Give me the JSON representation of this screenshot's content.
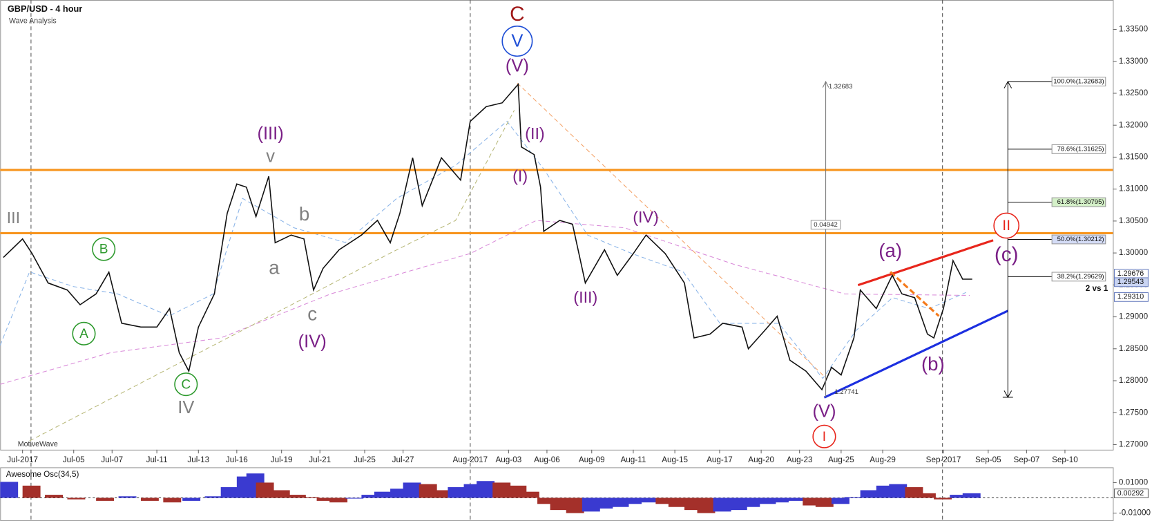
{
  "chart_data": [
    {
      "type": "line",
      "title": "GBP/USD - 4 hour",
      "subtitle": "Wave Analysis",
      "watermark": "MotiveWave",
      "x": [
        1,
        7,
        10,
        15,
        21,
        25,
        30,
        34,
        38,
        44,
        49,
        53,
        56,
        59,
        62,
        67,
        71,
        74,
        77,
        80,
        84,
        86,
        91,
        95,
        98,
        101,
        106,
        113,
        118,
        122,
        125,
        129,
        132,
        138,
        144,
        147,
        152,
        157,
        162,
        163,
        167,
        169,
        170,
        175,
        179,
        183,
        189,
        193,
        198,
        202,
        208,
        214,
        217,
        222,
        226,
        232,
        234,
        239,
        243,
        247,
        252,
        257,
        260,
        263,
        267,
        269,
        274,
        279,
        282,
        286,
        290,
        292,
        295,
        298,
        301,
        304
      ],
      "series": [
        {
          "color": "#111111",
          "values": [
            1.2993,
            1.3022,
            1.2999,
            1.2953,
            1.2942,
            1.2919,
            1.2936,
            1.297,
            1.289,
            1.2884,
            1.2884,
            1.2913,
            1.2844,
            1.2815,
            1.2884,
            1.2936,
            1.3062,
            1.3108,
            1.3103,
            1.3057,
            1.312,
            1.3016,
            1.3028,
            1.3022,
            1.2942,
            1.2976,
            1.3005,
            1.3028,
            1.3051,
            1.3016,
            1.3062,
            1.3149,
            1.3074,
            1.3149,
            1.3114,
            1.3206,
            1.3229,
            1.3235,
            1.3264,
            1.3166,
            1.3154,
            1.3103,
            1.3034,
            1.3051,
            1.3045,
            1.2953,
            1.3005,
            1.2965,
            1.2999,
            1.3028,
            1.2999,
            1.2953,
            1.2867,
            1.2873,
            1.289,
            1.2884,
            1.285,
            1.2878,
            1.2901,
            1.2832,
            1.2815,
            1.2786,
            1.2821,
            1.2809,
            1.2867,
            1.2942,
            1.2913,
            1.2965,
            1.2936,
            1.293,
            1.2873,
            1.2867,
            1.2913,
            1.2988,
            1.2959,
            1.2959
          ]
        }
      ],
      "xlim": [
        0,
        348
      ],
      "xticks": [
        {
          "value": 7,
          "label": "Jul-2017"
        },
        {
          "value": 23,
          "label": "Jul-05"
        },
        {
          "value": 35,
          "label": "Jul-07"
        },
        {
          "value": 49,
          "label": "Jul-11"
        },
        {
          "value": 62,
          "label": "Jul-13"
        },
        {
          "value": 74,
          "label": "Jul-16"
        },
        {
          "value": 88,
          "label": "Jul-19"
        },
        {
          "value": 100,
          "label": "Jul-21"
        },
        {
          "value": 114,
          "label": "Jul-25"
        },
        {
          "value": 126,
          "label": "Jul-27"
        },
        {
          "value": 147,
          "label": "Aug-2017"
        },
        {
          "value": 159,
          "label": "Aug-03"
        },
        {
          "value": 171,
          "label": "Aug-06"
        },
        {
          "value": 185,
          "label": "Aug-09"
        },
        {
          "value": 198,
          "label": "Aug-11"
        },
        {
          "value": 211,
          "label": "Aug-15"
        },
        {
          "value": 225,
          "label": "Aug-17"
        },
        {
          "value": 238,
          "label": "Aug-20"
        },
        {
          "value": 250,
          "label": "Aug-23"
        },
        {
          "value": 263,
          "label": "Aug-25"
        },
        {
          "value": 276,
          "label": "Aug-29"
        },
        {
          "value": 295,
          "label": "Sep-2017"
        },
        {
          "value": 309,
          "label": "Sep-05"
        },
        {
          "value": 321,
          "label": "Sep-07"
        },
        {
          "value": 333,
          "label": "Sep-10"
        }
      ],
      "ylim": [
        1.2692,
        1.3396
      ],
      "yticks": [
        {
          "value": 1.335,
          "label": "1.33500"
        },
        {
          "value": 1.33,
          "label": "1.33000"
        },
        {
          "value": 1.325,
          "label": "1.32500"
        },
        {
          "value": 1.32,
          "label": "1.32000"
        },
        {
          "value": 1.315,
          "label": "1.31500"
        },
        {
          "value": 1.31,
          "label": "1.31000"
        },
        {
          "value": 1.305,
          "label": "1.30500"
        },
        {
          "value": 1.3,
          "label": "1.30000"
        },
        {
          "value": 1.295,
          "label": "1.29500"
        },
        {
          "value": 1.29,
          "label": "1.29000"
        },
        {
          "value": 1.285,
          "label": "1.28500"
        },
        {
          "value": 1.28,
          "label": "1.28000"
        },
        {
          "value": 1.275,
          "label": "1.27500"
        },
        {
          "value": 1.27,
          "label": "1.27000"
        }
      ],
      "hlines": [
        {
          "value": 1.313,
          "color": "#f7941d"
        },
        {
          "value": 1.3031,
          "color": "#f7941d"
        }
      ],
      "fib_levels": [
        {
          "value": 1.32683,
          "label": "100.0%(1.32683)"
        },
        {
          "value": 1.31625,
          "label": "78.6%(1.31625)"
        },
        {
          "value": 1.30795,
          "label": "61.8%(1.30795)"
        },
        {
          "value": 1.30212,
          "label": "50.0%(1.30212)"
        },
        {
          "value": 1.29629,
          "label": "38.2%(1.29629)"
        }
      ],
      "measure": {
        "from": 1.27741,
        "to": 1.32683,
        "diff": 0.04942
      },
      "price_labels": [
        1.29676,
        1.29543,
        {
          "value": 1.2931,
          "label": "1.29310"
        }
      ],
      "annotations": [
        {
          "text": "C",
          "color": "#a01818"
        },
        {
          "text": "V",
          "color": "#1f4fd6",
          "circled": true
        },
        {
          "text": "(V)",
          "color": "#7a1f86"
        },
        {
          "text": "(II)",
          "color": "#7a1f86"
        },
        {
          "text": "(I)",
          "color": "#7a1f86"
        },
        {
          "text": "(III)",
          "color": "#7a1f86"
        },
        {
          "text": "v",
          "color": "#808080"
        },
        {
          "text": "b",
          "color": "#808080"
        },
        {
          "text": "a",
          "color": "#808080"
        },
        {
          "text": "c",
          "color": "#808080"
        },
        {
          "text": "(IV)",
          "color": "#7a1f86"
        },
        {
          "text": "III",
          "color": "#808080"
        },
        {
          "text": "B",
          "color": "#2e9a2e",
          "circled": true
        },
        {
          "text": "A",
          "color": "#2e9a2e",
          "circled": true
        },
        {
          "text": "C",
          "color": "#2e9a2e",
          "circled": true
        },
        {
          "text": "IV",
          "color": "#808080"
        },
        {
          "text": "(IV)",
          "color": "#7a1f86"
        },
        {
          "text": "(III)",
          "color": "#7a1f86"
        },
        {
          "text": "(a)",
          "color": "#7a1f86"
        },
        {
          "text": "(b)",
          "color": "#7a1f86"
        },
        {
          "text": "(V)",
          "color": "#7a1f86"
        },
        {
          "text": "I",
          "color": "#e8261c",
          "circled": true
        },
        {
          "text": "II",
          "color": "#e8261c",
          "circled": true
        },
        {
          "text": "(c)",
          "color": "#7a1f86"
        },
        {
          "text": "2 vs 1",
          "color": "#111111"
        }
      ]
    },
    {
      "type": "bar",
      "title": "Awesome Osc(34,5)",
      "x": [
        0,
        7,
        14,
        21,
        30,
        37,
        44,
        51,
        57,
        64,
        69,
        74,
        77,
        80,
        85,
        90,
        94,
        99,
        103,
        108,
        113,
        117,
        122,
        126,
        131,
        136,
        140,
        145,
        149,
        154,
        159,
        163,
        168,
        172,
        177,
        182,
        186,
        191,
        195,
        200,
        205,
        209,
        214,
        218,
        223,
        228,
        232,
        237,
        241,
        246,
        251,
        255,
        260,
        264,
        269,
        274,
        278,
        283,
        287,
        292,
        297,
        301
      ],
      "values": [
        0.0105,
        0.008,
        0.002,
        -0.001,
        -0.002,
        0.001,
        -0.002,
        -0.003,
        -0.002,
        0.001,
        0.007,
        0.014,
        0.016,
        0.01,
        0.005,
        0.002,
        0.0005,
        -0.002,
        -0.003,
        -0.0005,
        0.002,
        0.004,
        0.006,
        0.01,
        0.009,
        0.005,
        0.007,
        0.009,
        0.011,
        0.01,
        0.008,
        0.004,
        -0.004,
        -0.008,
        -0.01,
        -0.009,
        -0.007,
        -0.006,
        -0.004,
        -0.003,
        -0.004,
        -0.006,
        -0.008,
        -0.01,
        -0.009,
        -0.008,
        -0.006,
        -0.004,
        -0.003,
        -0.002,
        -0.005,
        -0.006,
        -0.004,
        0.0005,
        0.005,
        0.008,
        0.009,
        0.007,
        0.003,
        -0.001,
        0.002,
        0.003
      ],
      "up_color": "#3a3ad0",
      "down_color": "#a4302a",
      "xlim": [
        0,
        348
      ],
      "ylim": [
        -0.0152,
        0.02
      ],
      "yticks": [
        {
          "value": 0.01,
          "label": "0.01000"
        },
        {
          "value": -0.01,
          "label": "-0.01000"
        }
      ],
      "last_label": {
        "value": 0.00292,
        "label": "0.00292"
      }
    }
  ]
}
